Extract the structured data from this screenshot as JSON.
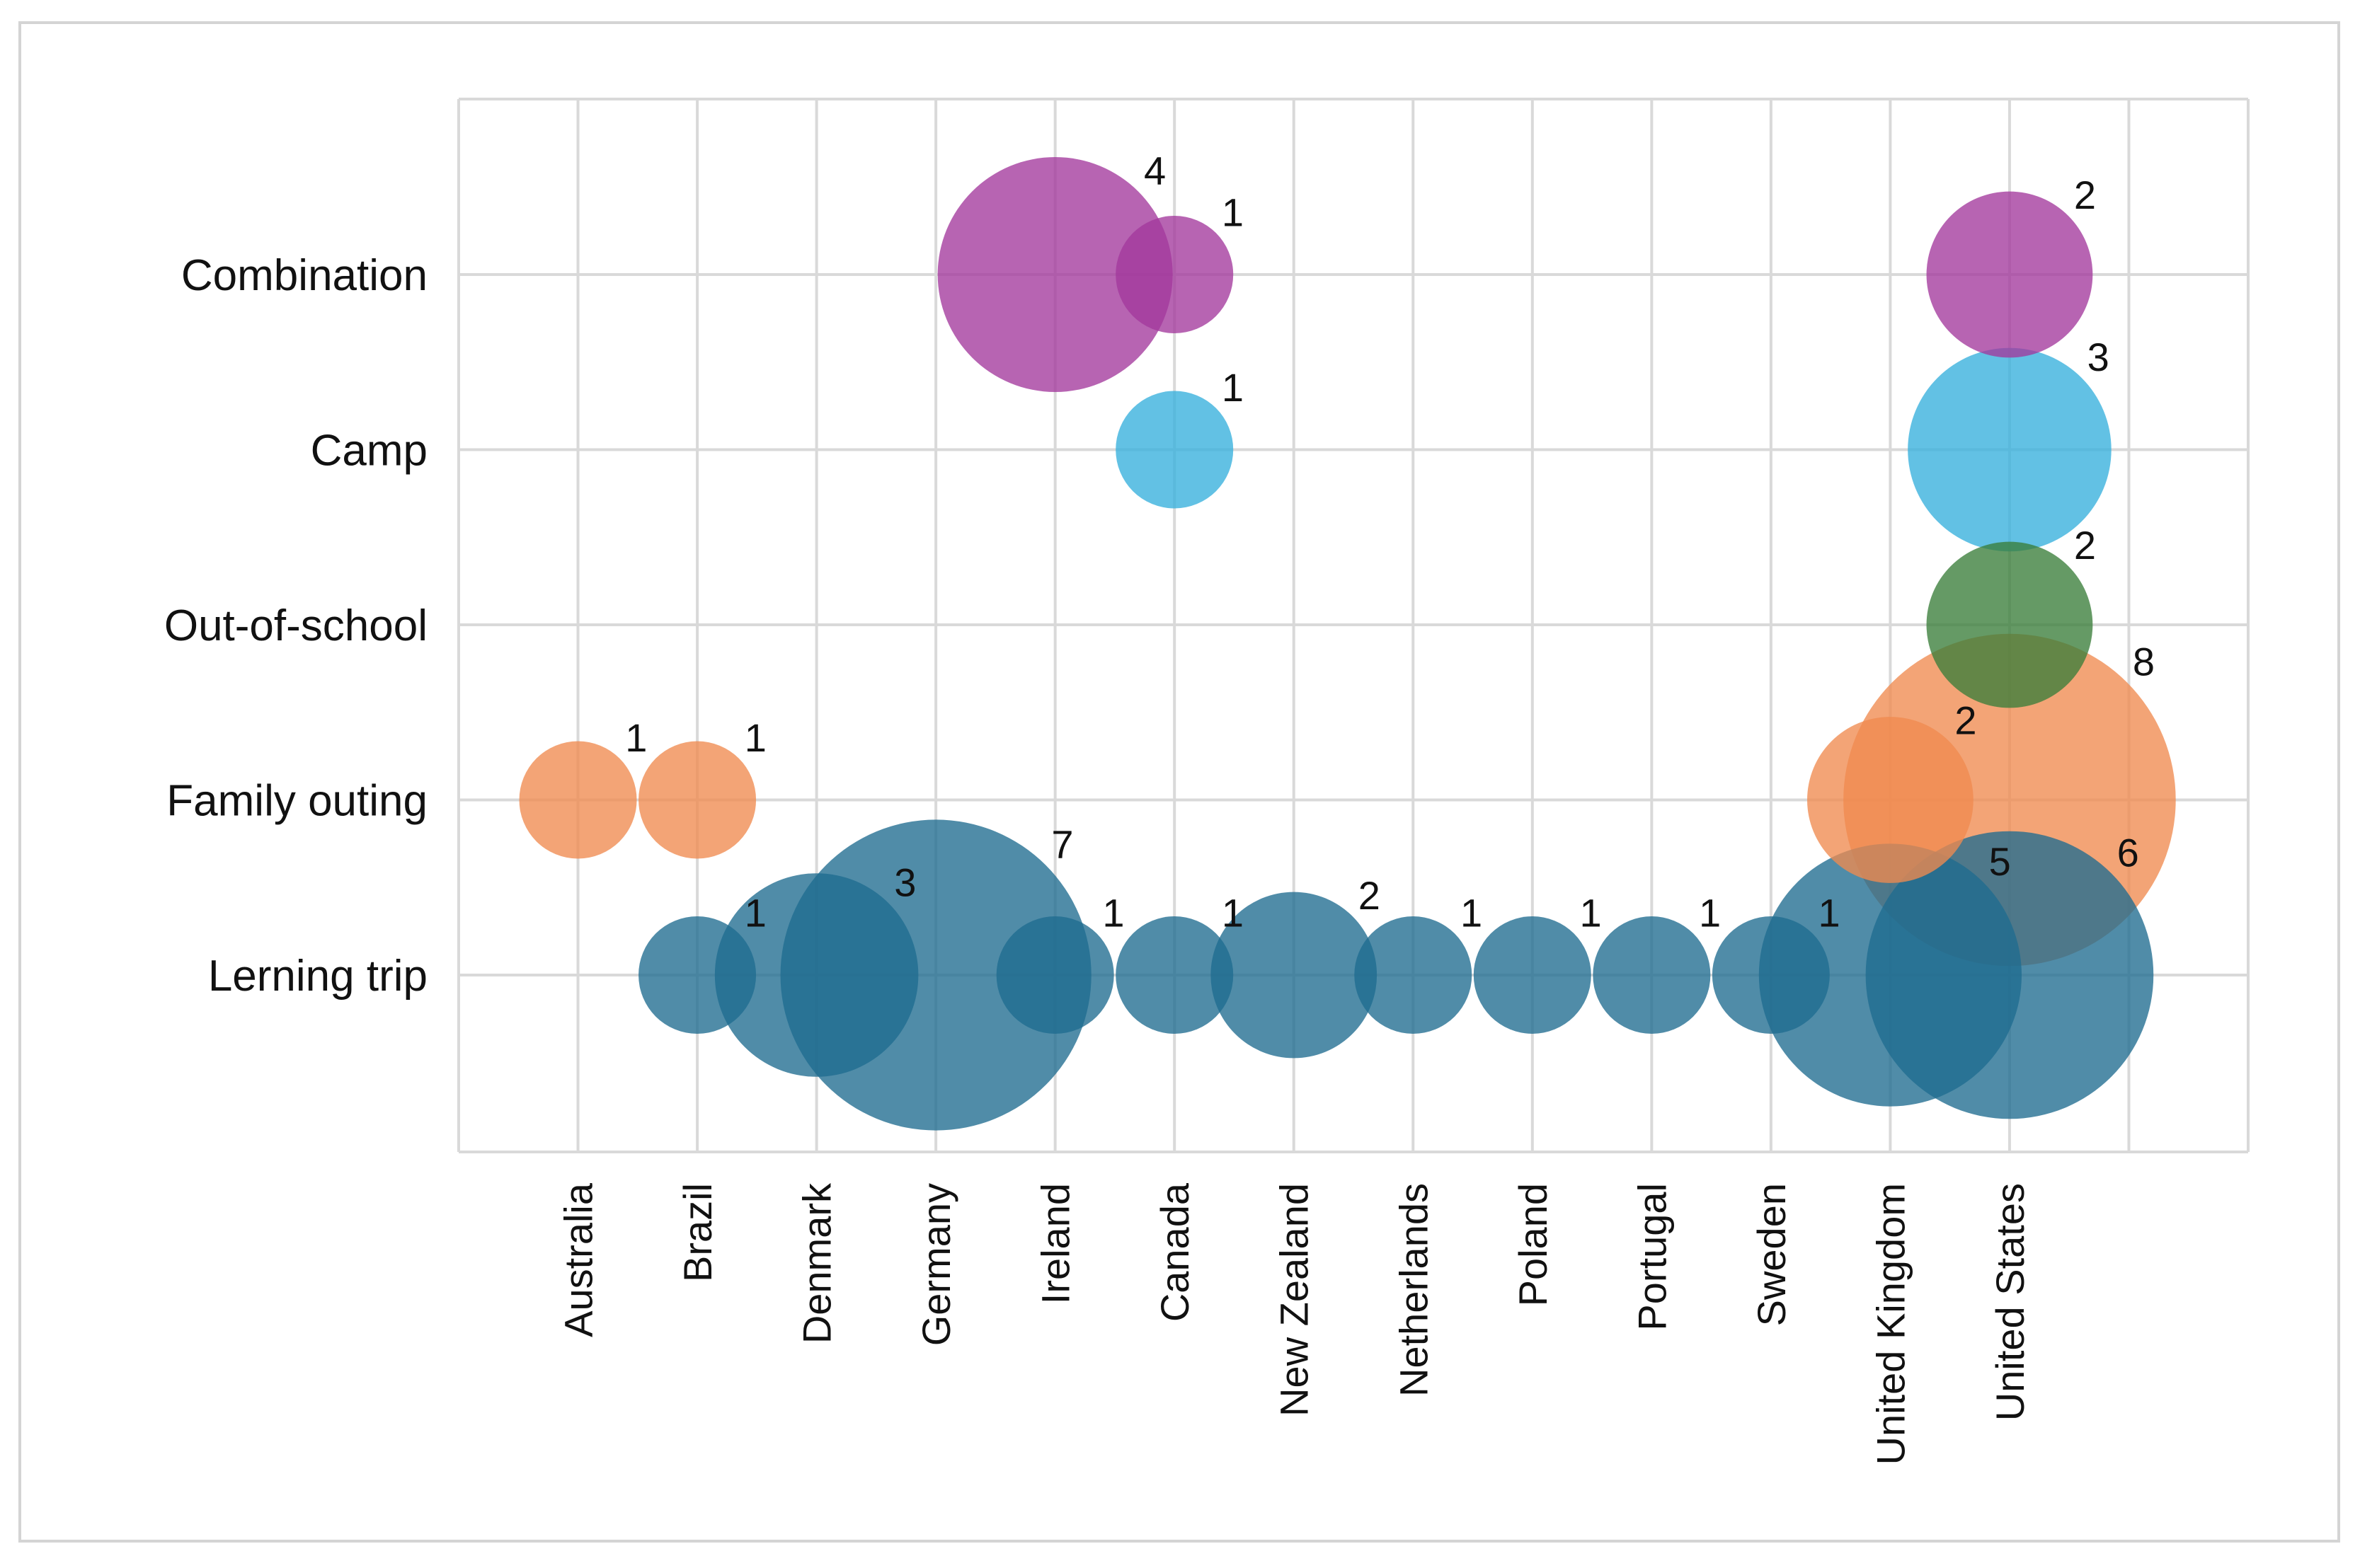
{
  "chart_data": {
    "type": "scatter",
    "subtype": "bubble",
    "title": "",
    "xlabel": "",
    "ylabel": "",
    "categories_x": [
      "Australia",
      "Brazil",
      "Denmark",
      "Germany",
      "Ireland",
      "Canada",
      "New Zealand",
      "Netherlands",
      "Poland",
      "Portugal",
      "Sweden",
      "United Kingdom",
      "United States"
    ],
    "categories_y": [
      "Lerning trip",
      "Family outing",
      "Out-of-school",
      "Camp",
      "Combination"
    ],
    "grid": true,
    "legend": "none",
    "colors": {
      "Lerning trip": "#1f6b8f",
      "Family outing": "#ef8a4f",
      "Out-of-school": "#3a7d3a",
      "Camp": "#36b0dd",
      "Combination": "#a3389c"
    },
    "points": [
      {
        "x": "Brazil",
        "y": "Lerning trip",
        "value": 1,
        "label": "1"
      },
      {
        "x": "Denmark",
        "y": "Lerning trip",
        "value": 3,
        "label": "3"
      },
      {
        "x": "Germany",
        "y": "Lerning trip",
        "value": 7,
        "label": "7"
      },
      {
        "x": "Ireland",
        "y": "Lerning trip",
        "value": 1,
        "label": "1"
      },
      {
        "x": "Canada",
        "y": "Lerning trip",
        "value": 1,
        "label": "1"
      },
      {
        "x": "New Zealand",
        "y": "Lerning trip",
        "value": 2,
        "label": "2"
      },
      {
        "x": "Netherlands",
        "y": "Lerning trip",
        "value": 1,
        "label": "1"
      },
      {
        "x": "Poland",
        "y": "Lerning trip",
        "value": 1,
        "label": "1"
      },
      {
        "x": "Portugal",
        "y": "Lerning trip",
        "value": 1,
        "label": "1"
      },
      {
        "x": "Sweden",
        "y": "Lerning trip",
        "value": 1,
        "label": "1"
      },
      {
        "x": "United Kingdom",
        "y": "Lerning trip",
        "value": 5,
        "label": "5"
      },
      {
        "x": "United States",
        "y": "Lerning trip",
        "value": 6,
        "label": "6"
      },
      {
        "x": "Australia",
        "y": "Family outing",
        "value": 1,
        "label": "1"
      },
      {
        "x": "Brazil",
        "y": "Family outing",
        "value": 1,
        "label": "1"
      },
      {
        "x": "United Kingdom",
        "y": "Family outing",
        "value": 2,
        "label": "2"
      },
      {
        "x": "United States",
        "y": "Family outing",
        "value": 8,
        "label": "8"
      },
      {
        "x": "United States",
        "y": "Out-of-school",
        "value": 2,
        "label": "2"
      },
      {
        "x": "Canada",
        "y": "Camp",
        "value": 1,
        "label": "1"
      },
      {
        "x": "United States",
        "y": "Camp",
        "value": 3,
        "label": "3"
      },
      {
        "x": "Ireland",
        "y": "Combination",
        "value": 4,
        "label": "4"
      },
      {
        "x": "Canada",
        "y": "Combination",
        "value": 1,
        "label": "1"
      },
      {
        "x": "United States",
        "y": "Combination",
        "value": 2,
        "label": "2"
      }
    ]
  }
}
